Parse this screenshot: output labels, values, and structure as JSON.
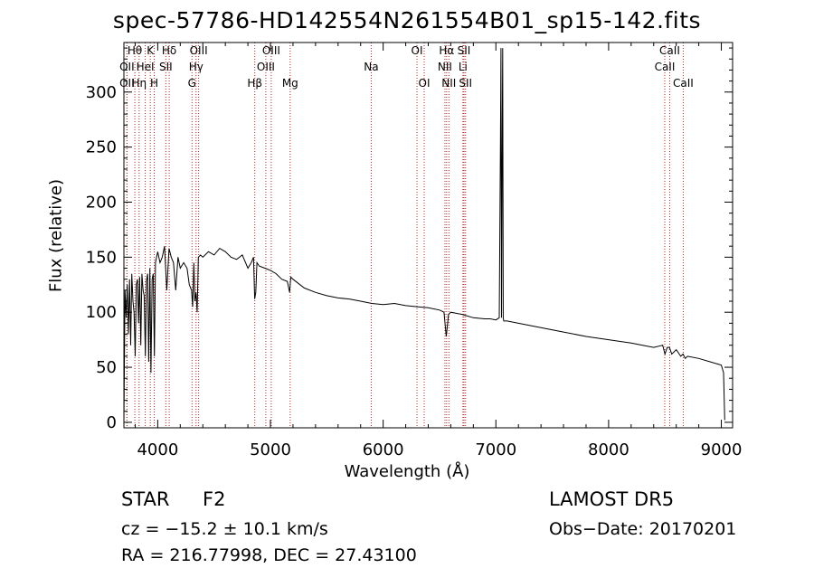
{
  "chart_data": {
    "type": "line",
    "title": "spec-57786-HD142554N261554B01_sp15-142.fits",
    "xlabel": "Wavelength (Å)",
    "ylabel": "Flux (relative)",
    "xlim": [
      3700,
      9100
    ],
    "ylim": [
      -5,
      345
    ],
    "xticks": [
      4000,
      5000,
      6000,
      7000,
      8000,
      9000
    ],
    "yticks": [
      0,
      50,
      100,
      150,
      200,
      250,
      300
    ],
    "grid": false,
    "line_color": "#000000",
    "marker_color": "#b22222",
    "series": [
      {
        "x": [
          3700,
          3710,
          3720,
          3730,
          3740,
          3750,
          3760,
          3770,
          3780,
          3790,
          3800,
          3810,
          3820,
          3830,
          3840,
          3850,
          3860,
          3870,
          3880,
          3890,
          3900,
          3910,
          3920,
          3930,
          3940,
          3950,
          3960,
          3970,
          3980,
          3990,
          4000,
          4020,
          4040,
          4060,
          4080,
          4100,
          4120,
          4140,
          4160,
          4180,
          4200,
          4230,
          4260,
          4280,
          4300,
          4310,
          4320,
          4330,
          4340,
          4350,
          4360,
          4380,
          4400,
          4450,
          4500,
          4550,
          4600,
          4650,
          4700,
          4750,
          4800,
          4830,
          4850,
          4860,
          4870,
          4880,
          4900,
          4950,
          5000,
          5050,
          5100,
          5150,
          5170,
          5180,
          5200,
          5300,
          5400,
          5500,
          5600,
          5700,
          5800,
          5900,
          6000,
          6100,
          6200,
          6300,
          6400,
          6500,
          6540,
          6560,
          6570,
          6580,
          6600,
          6700,
          6800,
          6900,
          6950,
          7000,
          7030,
          7040,
          7045,
          7050,
          7055,
          7060,
          7065,
          7070,
          7100,
          7200,
          7400,
          7600,
          7800,
          8000,
          8200,
          8400,
          8480,
          8500,
          8520,
          8540,
          8560,
          8600,
          8640,
          8660,
          8680,
          8700,
          8800,
          8900,
          9000,
          9020,
          9030
        ],
        "y": [
          0,
          120,
          95,
          125,
          80,
          130,
          70,
          135,
          110,
          100,
          60,
          125,
          130,
          90,
          132,
          70,
          135,
          120,
          115,
          60,
          128,
          135,
          55,
          140,
          45,
          130,
          135,
          60,
          145,
          150,
          155,
          145,
          150,
          160,
          120,
          158,
          150,
          145,
          120,
          150,
          140,
          145,
          140,
          125,
          120,
          105,
          145,
          110,
          118,
          100,
          150,
          152,
          150,
          155,
          152,
          158,
          155,
          150,
          148,
          152,
          140,
          145,
          150,
          112,
          118,
          145,
          142,
          140,
          138,
          135,
          130,
          128,
          118,
          132,
          130,
          122,
          118,
          115,
          113,
          112,
          110,
          108,
          107,
          108,
          106,
          105,
          104,
          102,
          100,
          78,
          88,
          98,
          100,
          98,
          95,
          94,
          94,
          93,
          95,
          250,
          340,
          95,
          230,
          340,
          95,
          92,
          92,
          90,
          86,
          82,
          78,
          75,
          72,
          68,
          70,
          62,
          68,
          68,
          62,
          66,
          60,
          62,
          58,
          60,
          58,
          55,
          52,
          45,
          2
        ]
      }
    ],
    "line_markers": [
      {
        "label": "Hθ",
        "x": 3797,
        "row": 0
      },
      {
        "label": "OII",
        "x": 3727,
        "row": 1
      },
      {
        "label": "OII",
        "x": 3727,
        "row": 2
      },
      {
        "label": "Hη",
        "x": 3835,
        "row": 2
      },
      {
        "label": "K",
        "x": 3934,
        "row": 0
      },
      {
        "label": "HeI",
        "x": 3889,
        "row": 1
      },
      {
        "label": "H",
        "x": 3969,
        "row": 2
      },
      {
        "label": "Hδ",
        "x": 4102,
        "row": 0
      },
      {
        "label": "SII",
        "x": 4072,
        "row": 1
      },
      {
        "label": "OIII",
        "x": 4363,
        "row": 0
      },
      {
        "label": "Hγ",
        "x": 4340,
        "row": 1
      },
      {
        "label": "G",
        "x": 4304,
        "row": 2
      },
      {
        "label": "OIII",
        "x": 5007,
        "row": 0
      },
      {
        "label": "OIII",
        "x": 4959,
        "row": 1
      },
      {
        "label": "Hβ",
        "x": 4861,
        "row": 2
      },
      {
        "label": "Mg",
        "x": 5175,
        "row": 2
      },
      {
        "label": "Na",
        "x": 5894,
        "row": 1
      },
      {
        "label": "OI",
        "x": 6300,
        "row": 0
      },
      {
        "label": "OI",
        "x": 6364,
        "row": 2
      },
      {
        "label": "Hα",
        "x": 6563,
        "row": 0
      },
      {
        "label": "NII",
        "x": 6548,
        "row": 1
      },
      {
        "label": "NII",
        "x": 6583,
        "row": 2
      },
      {
        "label": "SII",
        "x": 6717,
        "row": 0
      },
      {
        "label": "Li",
        "x": 6708,
        "row": 1
      },
      {
        "label": "SII",
        "x": 6731,
        "row": 2
      },
      {
        "label": "CaII",
        "x": 8542,
        "row": 0
      },
      {
        "label": "CaII",
        "x": 8498,
        "row": 1
      },
      {
        "label": "CaII",
        "x": 8662,
        "row": 2
      }
    ]
  },
  "info": {
    "obj_class": "STAR",
    "obj_subclass": "F2",
    "survey": "LAMOST DR5",
    "cz": "cz = −15.2 ± 10.1 km/s",
    "obs_date": "Obs−Date: 20170201",
    "radec": "RA = 216.77998, DEC =  27.43100"
  }
}
